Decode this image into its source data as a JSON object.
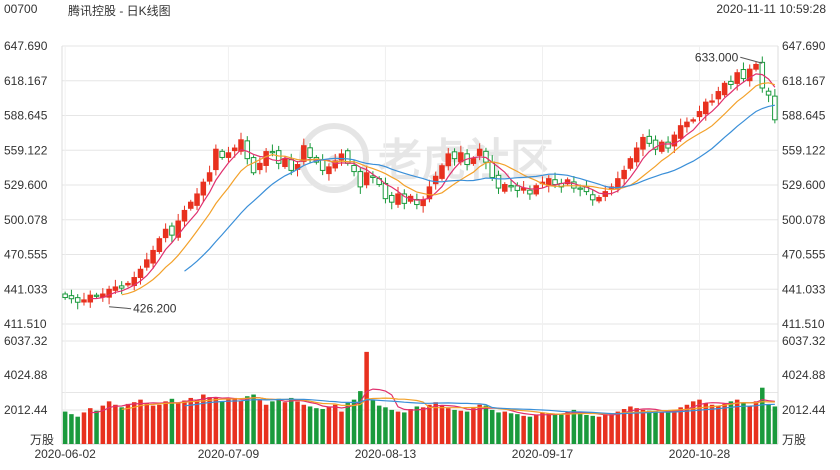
{
  "header": {
    "code": "00700",
    "title": "腾讯控股 - 日K线图",
    "timestamp": "2020-11-11 10:59:28"
  },
  "watermark": "老虎社区",
  "colors": {
    "up": "#e8311f",
    "down": "#1a9a3c",
    "ma5": "#e0306e",
    "ma10": "#f3a12a",
    "ma20": "#3a8fd8",
    "grid": "#e6e6e6"
  },
  "chart_data": {
    "type": "candlestick",
    "price_axis": {
      "ylim": [
        411.51,
        647.69
      ],
      "ticks": [
        "647.690",
        "618.167",
        "588.645",
        "559.122",
        "529.600",
        "500.078",
        "470.555",
        "441.033",
        "411.510"
      ]
    },
    "volume_axis": {
      "ylim": [
        0,
        6037.32
      ],
      "ticks": [
        "6037.32",
        "4024.88",
        "2012.44"
      ],
      "unit": "万股"
    },
    "x_tick_labels": [
      {
        "label": "2020-06-02",
        "index": 0
      },
      {
        "label": "2020-07-09",
        "index": 26
      },
      {
        "label": "2020-08-13",
        "index": 51
      },
      {
        "label": "2020-09-17",
        "index": 76
      },
      {
        "label": "2020-10-28",
        "index": 101
      }
    ],
    "annotations": {
      "high": "633.000",
      "low": "426.200"
    },
    "closes": [
      434,
      433,
      430,
      432,
      436,
      435,
      437,
      441,
      443,
      442,
      446,
      451,
      458,
      466,
      474,
      484,
      492,
      487,
      499,
      508,
      515,
      522,
      532,
      540,
      560,
      553,
      557,
      561,
      568,
      552,
      540,
      548,
      558,
      557,
      548,
      552,
      542,
      547,
      563,
      553,
      549,
      542,
      545,
      550,
      556,
      548,
      541,
      528,
      540,
      536,
      530,
      518,
      515,
      522,
      514,
      520,
      513,
      517,
      528,
      537,
      546,
      556,
      552,
      557,
      547,
      552,
      560,
      549,
      536,
      527,
      530,
      528,
      525,
      527,
      522,
      529,
      532,
      535,
      530,
      528,
      534,
      527,
      526,
      524,
      517,
      519,
      524,
      528,
      535,
      542,
      552,
      561,
      570,
      565,
      560,
      566,
      561,
      572,
      580,
      583,
      585,
      592,
      600,
      601,
      609,
      616,
      615,
      625,
      620,
      628,
      632,
      612,
      606,
      585
    ],
    "volumes": [
      1900,
      1750,
      1600,
      1850,
      2100,
      1950,
      2250,
      2500,
      2300,
      2150,
      2350,
      2450,
      2600,
      2400,
      2250,
      2300,
      2500,
      2650,
      2400,
      2550,
      2700,
      2600,
      2900,
      2750,
      2700,
      2500,
      2650,
      2700,
      2550,
      2800,
      2900,
      2600,
      2300,
      2500,
      2650,
      2450,
      2700,
      2500,
      2300,
      2200,
      2100,
      2050,
      2200,
      2300,
      1900,
      2400,
      2600,
      3100,
      5400,
      2600,
      2250,
      2150,
      2000,
      1900,
      1850,
      2050,
      2200,
      2150,
      2300,
      2450,
      2250,
      2100,
      2000,
      1950,
      1900,
      2100,
      2300,
      2250,
      2000,
      1850,
      1900,
      1800,
      1750,
      1650,
      1600,
      1700,
      1850,
      1800,
      1700,
      1750,
      1900,
      2000,
      1850,
      1700,
      1650,
      1600,
      1750,
      1800,
      1900,
      2050,
      2200,
      2100,
      2000,
      1950,
      1900,
      1850,
      1900,
      2000,
      2150,
      2300,
      2500,
      2600,
      2400,
      2300,
      2250,
      2350,
      2500,
      2600,
      2400,
      2200,
      2500,
      3300,
      2300,
      2200
    ]
  }
}
